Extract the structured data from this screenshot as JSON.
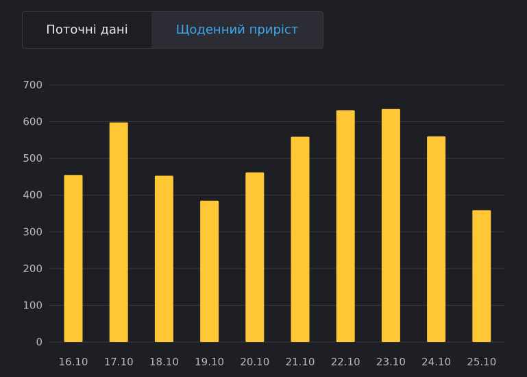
{
  "tabs": [
    {
      "label": "Поточні дані",
      "active": false
    },
    {
      "label": "Щоденний приріст",
      "active": true
    }
  ],
  "colors": {
    "background": "#1e1f25",
    "bar": "#ffc636",
    "grid": "#3a3b42",
    "tick_text": "#b9bac0",
    "active_tab_text": "#3fa7f0"
  },
  "chart_data": {
    "type": "bar",
    "categories": [
      "16.10",
      "17.10",
      "18.10",
      "19.10",
      "20.10",
      "21.10",
      "22.10",
      "23.10",
      "24.10",
      "25.10"
    ],
    "values": [
      455,
      598,
      453,
      385,
      462,
      559,
      631,
      635,
      560,
      359
    ],
    "ylim": [
      0,
      700
    ],
    "yticks": [
      0,
      100,
      200,
      300,
      400,
      500,
      600,
      700
    ],
    "grid": true,
    "title": "",
    "xlabel": "",
    "ylabel": ""
  }
}
